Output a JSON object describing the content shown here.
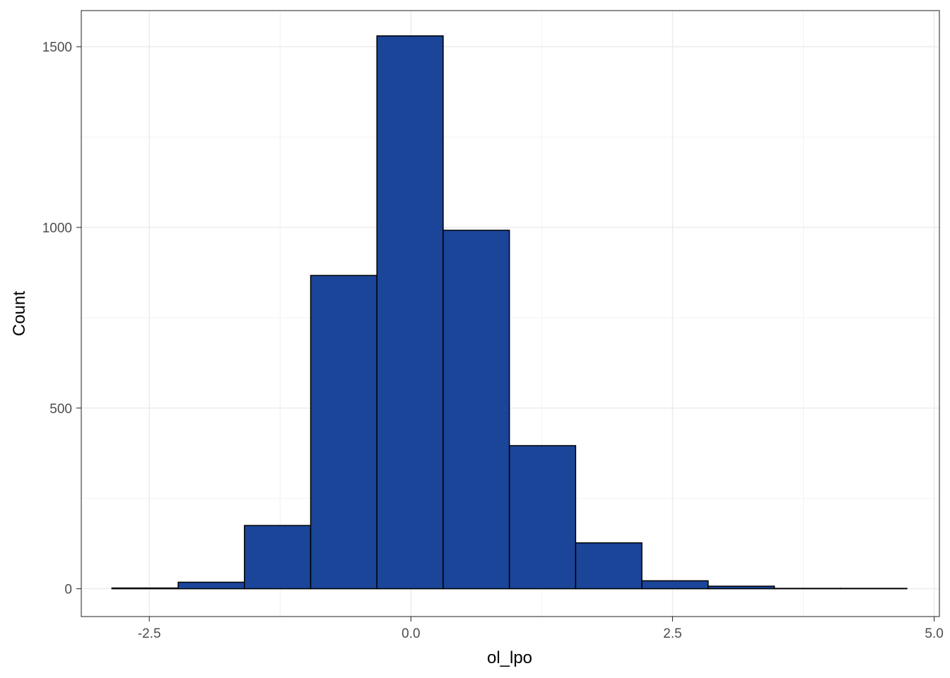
{
  "chart_data": {
    "type": "bar",
    "subtype": "histogram",
    "title": "",
    "xlabel": "ol_lpo",
    "ylabel": "Count",
    "xlim": [
      -3.15,
      5.05
    ],
    "ylim": [
      -77,
      1600
    ],
    "x_ticks": [
      -2.5,
      0.0,
      2.5,
      5.0
    ],
    "x_tick_labels": [
      "-2.5",
      "0.0",
      "2.5",
      "5.0"
    ],
    "y_ticks": [
      0,
      500,
      1000,
      1500
    ],
    "y_tick_labels": [
      "0",
      "500",
      "1000",
      "1500"
    ],
    "grid": true,
    "bin_width": 0.633,
    "bins": [
      {
        "x0": -2.857,
        "x1": -2.224,
        "count": 2
      },
      {
        "x0": -2.224,
        "x1": -1.591,
        "count": 18
      },
      {
        "x0": -1.591,
        "x1": -0.958,
        "count": 175
      },
      {
        "x0": -0.958,
        "x1": -0.325,
        "count": 867
      },
      {
        "x0": -0.325,
        "x1": 0.308,
        "count": 1530
      },
      {
        "x0": 0.308,
        "x1": 0.941,
        "count": 992
      },
      {
        "x0": 0.941,
        "x1": 1.574,
        "count": 396
      },
      {
        "x0": 1.574,
        "x1": 2.207,
        "count": 127
      },
      {
        "x0": 2.207,
        "x1": 2.84,
        "count": 22
      },
      {
        "x0": 2.84,
        "x1": 3.473,
        "count": 7
      },
      {
        "x0": 3.473,
        "x1": 4.106,
        "count": 1
      },
      {
        "x0": 4.106,
        "x1": 4.739,
        "count": 1
      }
    ],
    "colors": {
      "fill": "#1a4599",
      "outline": "#000000",
      "panel_border": "#333333",
      "grid_major": "#ebebeb",
      "grid_minor": "#f2f2f2"
    }
  }
}
